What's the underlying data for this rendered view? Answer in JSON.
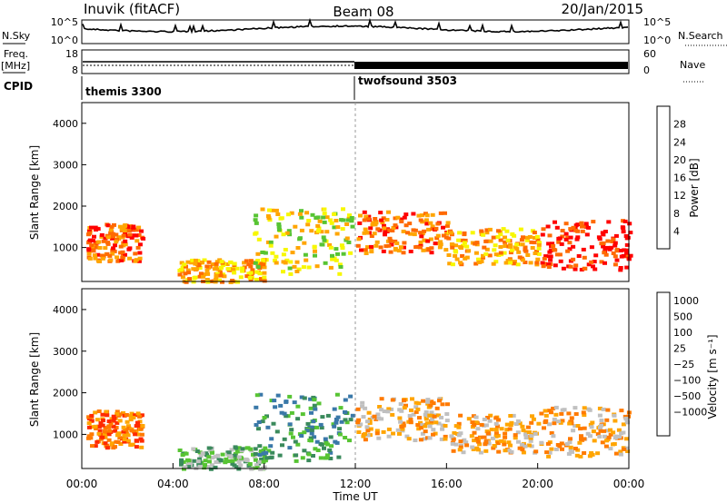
{
  "header": {
    "station": "Inuvik (fitACF)",
    "beam": "Beam 08",
    "date": "20/Jan/2015"
  },
  "top_panels": {
    "nsky_label": "N.Sky",
    "nsky_ticks": [
      "10^5",
      "10^0"
    ],
    "nsearch_label": "N.Search",
    "nsearch_ticks": [
      "10^5",
      "10^0"
    ],
    "freq_label": "Freq.",
    "freq_unit": "[MHz]",
    "freq_ticks": [
      "18",
      "8"
    ],
    "nave_label": "Nave",
    "nave_ticks": [
      "60",
      "0"
    ],
    "cpid_label": "CPID",
    "cpid_segments": [
      {
        "name": "themis 3300",
        "start_hour": 0
      },
      {
        "name": "twofsound 3503",
        "start_hour": 12
      }
    ]
  },
  "chart_data": [
    {
      "type": "heatmap",
      "quantity": "power",
      "ylabel": "Slant Range [km]",
      "xlabel": "",
      "ylim": [
        180,
        4500
      ],
      "yticks": [
        "1000",
        "2000",
        "3000",
        "4000"
      ],
      "xlim_hours": [
        0,
        24
      ],
      "colorbar": {
        "label": "Power [dB]",
        "ticks": [
          "4",
          "8",
          "12",
          "16",
          "20",
          "24",
          "28"
        ],
        "colors": [
          "#0000ff",
          "#2a4fa8",
          "#3a8a5c",
          "#57c433",
          "#f7f700",
          "#ffa500",
          "#ff6a00",
          "#ff0000"
        ]
      },
      "echo_regions": [
        {
          "t0": 0.2,
          "t1": 2.6,
          "r0": 700,
          "r1": 1600,
          "level": 6
        },
        {
          "t0": 4.2,
          "t1": 8.0,
          "r0": 200,
          "r1": 750,
          "level": 5
        },
        {
          "t0": 7.5,
          "t1": 11.8,
          "r0": 400,
          "r1": 2000,
          "level": 4
        },
        {
          "t0": 12.0,
          "t1": 16.0,
          "r0": 900,
          "r1": 1900,
          "level": 6
        },
        {
          "t0": 16.0,
          "t1": 20.0,
          "r0": 600,
          "r1": 1500,
          "level": 5
        },
        {
          "t0": 20.0,
          "t1": 24.0,
          "r0": 500,
          "r1": 1700,
          "level": 7
        }
      ]
    },
    {
      "type": "heatmap",
      "quantity": "velocity",
      "ylabel": "Slant Range [km]",
      "xlabel": "Time UT",
      "ylim": [
        180,
        4500
      ],
      "yticks": [
        "1000",
        "2000",
        "3000",
        "4000"
      ],
      "xticks": [
        "00:00",
        "04:00",
        "08:00",
        "12:00",
        "16:00",
        "20:00",
        "00:00"
      ],
      "colorbar": {
        "label": "Velocity [m s⁻¹]",
        "ticks": [
          "1000",
          "500",
          "100",
          "25",
          "−25",
          "−100",
          "−500",
          "−1000"
        ],
        "colors": [
          "#1f3fb0",
          "#3a78a8",
          "#3a8a5c",
          "#57c433",
          "#c0c0c0",
          "#ffa500",
          "#ff7a00",
          "#ff2a00",
          "#ff0000"
        ]
      },
      "echo_regions": [
        {
          "t0": 0.2,
          "t1": 2.6,
          "r0": 700,
          "r1": 1600,
          "level": 6
        },
        {
          "t0": 4.2,
          "t1": 8.0,
          "r0": 200,
          "r1": 750,
          "level": 3
        },
        {
          "t0": 7.5,
          "t1": 11.8,
          "r0": 400,
          "r1": 2000,
          "level": 2
        },
        {
          "t0": 12.0,
          "t1": 16.0,
          "r0": 900,
          "r1": 1900,
          "level": 5
        },
        {
          "t0": 16.0,
          "t1": 20.0,
          "r0": 600,
          "r1": 1500,
          "level": 5
        },
        {
          "t0": 20.0,
          "t1": 24.0,
          "r0": 500,
          "r1": 1700,
          "level": 5
        }
      ]
    }
  ]
}
